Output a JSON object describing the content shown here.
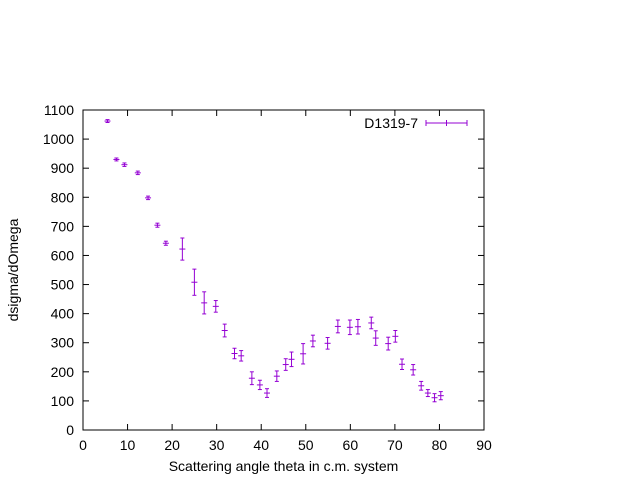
{
  "chart_data": {
    "type": "scatter",
    "title": "",
    "xlabel": "Scattering angle theta in c.m. system",
    "ylabel": "dsigma/dOmega",
    "xlim": [
      0,
      90
    ],
    "ylim": [
      0,
      1100
    ],
    "xticks": [
      0,
      10,
      20,
      30,
      40,
      50,
      60,
      70,
      80,
      90
    ],
    "yticks": [
      0,
      100,
      200,
      300,
      400,
      500,
      600,
      700,
      800,
      900,
      1000,
      1100
    ],
    "xtick_labels": [
      "0",
      "10",
      "20",
      "30",
      "40",
      "50",
      "60",
      "70",
      "80",
      "90"
    ],
    "ytick_labels": [
      "0",
      "100",
      "200",
      "300",
      "400",
      "500",
      "600",
      "700",
      "800",
      "900",
      "1000",
      "1100"
    ],
    "grid": false,
    "legend_position": "top-right",
    "series": [
      {
        "name": "D1319-7",
        "color": "#9400d3",
        "marker": "plus",
        "error_bars": true,
        "points": [
          {
            "x": 5.5,
            "y": 1062,
            "err": 5
          },
          {
            "x": 7.5,
            "y": 930,
            "err": 5
          },
          {
            "x": 9.3,
            "y": 912,
            "err": 6
          },
          {
            "x": 12.3,
            "y": 884,
            "err": 6
          },
          {
            "x": 14.6,
            "y": 798,
            "err": 6
          },
          {
            "x": 16.7,
            "y": 704,
            "err": 7
          },
          {
            "x": 18.6,
            "y": 642,
            "err": 7
          },
          {
            "x": 22.3,
            "y": 622,
            "err": 38
          },
          {
            "x": 25.0,
            "y": 508,
            "err": 45
          },
          {
            "x": 27.2,
            "y": 437,
            "err": 38
          },
          {
            "x": 29.8,
            "y": 425,
            "err": 20
          },
          {
            "x": 31.8,
            "y": 342,
            "err": 22
          },
          {
            "x": 34.0,
            "y": 263,
            "err": 18
          },
          {
            "x": 35.5,
            "y": 255,
            "err": 18
          },
          {
            "x": 37.9,
            "y": 178,
            "err": 22
          },
          {
            "x": 39.7,
            "y": 155,
            "err": 16
          },
          {
            "x": 41.3,
            "y": 127,
            "err": 15
          },
          {
            "x": 43.5,
            "y": 185,
            "err": 18
          },
          {
            "x": 45.5,
            "y": 225,
            "err": 20
          },
          {
            "x": 46.8,
            "y": 243,
            "err": 25
          },
          {
            "x": 49.4,
            "y": 262,
            "err": 35
          },
          {
            "x": 51.6,
            "y": 306,
            "err": 20
          },
          {
            "x": 54.9,
            "y": 298,
            "err": 20
          },
          {
            "x": 57.2,
            "y": 356,
            "err": 22
          },
          {
            "x": 59.9,
            "y": 353,
            "err": 25
          },
          {
            "x": 61.7,
            "y": 355,
            "err": 25
          },
          {
            "x": 64.7,
            "y": 368,
            "err": 20
          },
          {
            "x": 65.7,
            "y": 316,
            "err": 25
          },
          {
            "x": 68.5,
            "y": 297,
            "err": 22
          },
          {
            "x": 70.1,
            "y": 322,
            "err": 20
          },
          {
            "x": 71.6,
            "y": 226,
            "err": 18
          },
          {
            "x": 74.1,
            "y": 207,
            "err": 18
          },
          {
            "x": 75.9,
            "y": 152,
            "err": 15
          },
          {
            "x": 77.4,
            "y": 127,
            "err": 12
          },
          {
            "x": 78.9,
            "y": 111,
            "err": 14
          },
          {
            "x": 80.3,
            "y": 118,
            "err": 14
          }
        ]
      }
    ]
  }
}
